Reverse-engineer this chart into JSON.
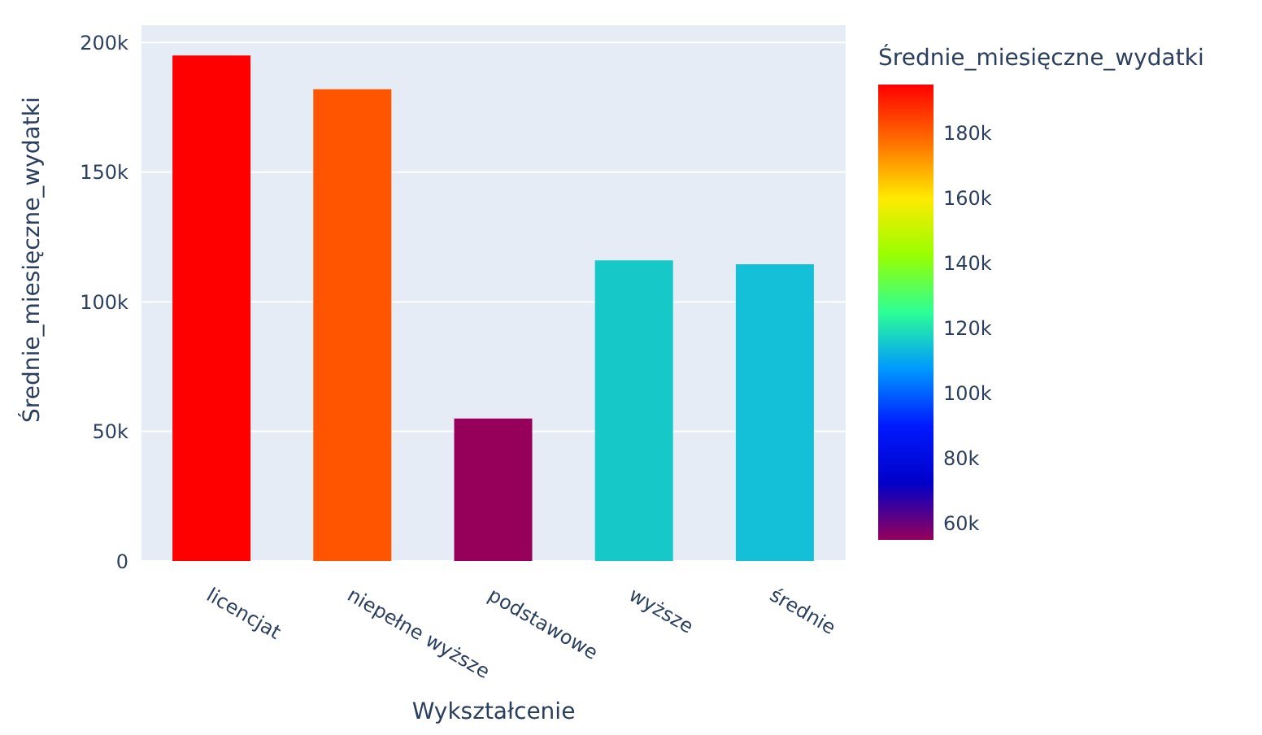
{
  "chart_data": {
    "type": "bar",
    "xlabel": "Wykształcenie",
    "ylabel": "Średnie_miesięczne_wydatki",
    "clabel": "Średnie_miesięczne_wydatki",
    "categories": [
      "licencjat",
      "niepełne wyższe",
      "podstawowe",
      "wyższe",
      "średnie"
    ],
    "values": [
      195000,
      182000,
      55000,
      116000,
      114500
    ],
    "colors": [
      "#ff0000",
      "#ff5500",
      "#96005a",
      "#16c8c8",
      "#14c0d8"
    ],
    "ylim": [
      0,
      207000
    ],
    "yticks": [
      {
        "value": 0,
        "label": "0"
      },
      {
        "value": 50000,
        "label": "50k"
      },
      {
        "value": 100000,
        "label": "100k"
      },
      {
        "value": 150000,
        "label": "150k"
      },
      {
        "value": 200000,
        "label": "200k"
      }
    ],
    "clim": [
      55000,
      195000
    ],
    "cticks": [
      {
        "value": 60000,
        "label": "60k"
      },
      {
        "value": 80000,
        "label": "80k"
      },
      {
        "value": 100000,
        "label": "100k"
      },
      {
        "value": 120000,
        "label": "120k"
      },
      {
        "value": 140000,
        "label": "140k"
      },
      {
        "value": 160000,
        "label": "160k"
      },
      {
        "value": 180000,
        "label": "180k"
      }
    ],
    "grid": "y"
  }
}
